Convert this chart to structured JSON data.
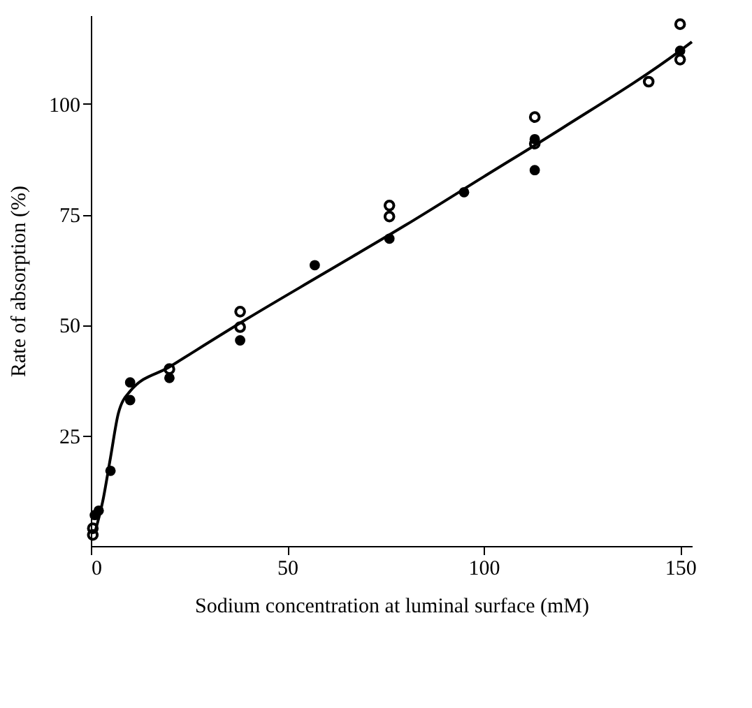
{
  "chart_data": {
    "type": "scatter",
    "xlabel": "Sodium concentration at luminal surface (mM)",
    "ylabel": "Rate of absorption (%)",
    "xlim": [
      0,
      153
    ],
    "xticks": [
      0,
      50,
      100,
      150
    ],
    "ylim": [
      0,
      120
    ],
    "yticks": [
      25,
      50,
      75,
      100
    ],
    "grid": false,
    "marker": "circle",
    "series": [
      {
        "color": "#000000",
        "x": [
          1,
          2,
          5,
          10,
          10,
          20,
          38,
          57,
          76,
          95,
          113,
          113,
          150
        ],
        "values": [
          7,
          8,
          17,
          37,
          33,
          38,
          46.5,
          63.5,
          69.5,
          80,
          92,
          85,
          112
        ]
      },
      {
        "color": "#000000",
        "x": [
          0.5,
          0.5,
          20,
          38,
          38,
          76,
          76,
          113,
          113,
          142,
          150,
          150
        ],
        "values": [
          4,
          2.5,
          40,
          53,
          49.5,
          77,
          74.5,
          97,
          91,
          105,
          118,
          110
        ]
      },
      {
        "type": "line",
        "marker": "none",
        "color": "#000000",
        "x": [
          1,
          3,
          5,
          7,
          10,
          20,
          40,
          60,
          80,
          100,
          120,
          150,
          153
        ],
        "values": [
          3,
          10,
          20,
          30,
          35,
          40.5,
          51.5,
          62,
          72.5,
          83.5,
          94.5,
          112,
          114
        ]
      }
    ]
  }
}
